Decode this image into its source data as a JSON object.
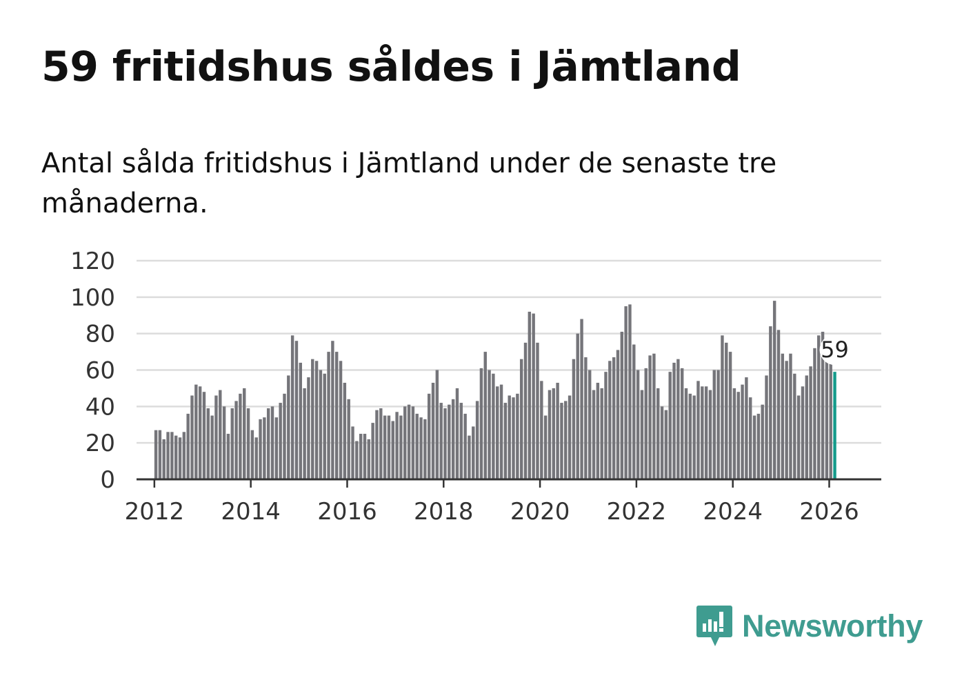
{
  "title": "59 fritidshus såldes i Jämtland",
  "subtitle": "Antal sålda fritidshus i Jämtland under de senaste tre månaderna.",
  "brand": {
    "name": "Newsworthy",
    "logo_icon": "newsworthy-chart-bubble-icon",
    "color": "#3f9c90"
  },
  "chart_data": {
    "type": "bar",
    "title": "59 fritidshus såldes i Jämtland",
    "subtitle": "Antal sålda fritidshus i Jämtland under de senaste tre månaderna.",
    "xlabel": "",
    "ylabel": "",
    "start": "2012-01",
    "frequency": "monthly",
    "ylim": [
      0,
      120
    ],
    "yticks": [
      0,
      20,
      40,
      60,
      80,
      100,
      120
    ],
    "xticks": [
      2012,
      2014,
      2016,
      2018,
      2020,
      2022,
      2024,
      2026
    ],
    "xlim": [
      2011.63,
      2027.08
    ],
    "grid": true,
    "bar_color": "#75757a",
    "highlight_color": "#139a8a",
    "highlight_label": "59",
    "values": [
      27,
      27,
      22,
      26,
      26,
      24,
      23,
      26,
      36,
      46,
      52,
      51,
      48,
      39,
      35,
      46,
      49,
      40,
      25,
      39,
      43,
      47,
      50,
      39,
      27,
      23,
      33,
      34,
      39,
      40,
      34,
      42,
      47,
      57,
      79,
      76,
      64,
      50,
      56,
      66,
      65,
      60,
      58,
      70,
      76,
      70,
      65,
      53,
      44,
      29,
      21,
      25,
      25,
      22,
      31,
      38,
      39,
      35,
      35,
      32,
      37,
      35,
      40,
      41,
      40,
      36,
      34,
      33,
      47,
      53,
      60,
      42,
      39,
      41,
      44,
      50,
      42,
      36,
      24,
      29,
      43,
      61,
      70,
      60,
      58,
      51,
      52,
      42,
      46,
      45,
      47,
      66,
      75,
      92,
      91,
      75,
      54,
      35,
      49,
      50,
      53,
      42,
      43,
      46,
      66,
      80,
      88,
      67,
      60,
      49,
      53,
      50,
      59,
      65,
      67,
      71,
      81,
      95,
      96,
      74,
      60,
      49,
      61,
      68,
      69,
      50,
      40,
      38,
      59,
      64,
      66,
      61,
      50,
      47,
      46,
      54,
      51,
      51,
      49,
      60,
      60,
      79,
      75,
      70,
      50,
      48,
      52,
      56,
      45,
      35,
      36,
      41,
      57,
      84,
      98,
      82,
      69,
      65,
      69,
      58,
      46,
      51,
      57,
      62,
      72,
      79,
      81,
      65,
      65,
      59
    ]
  }
}
